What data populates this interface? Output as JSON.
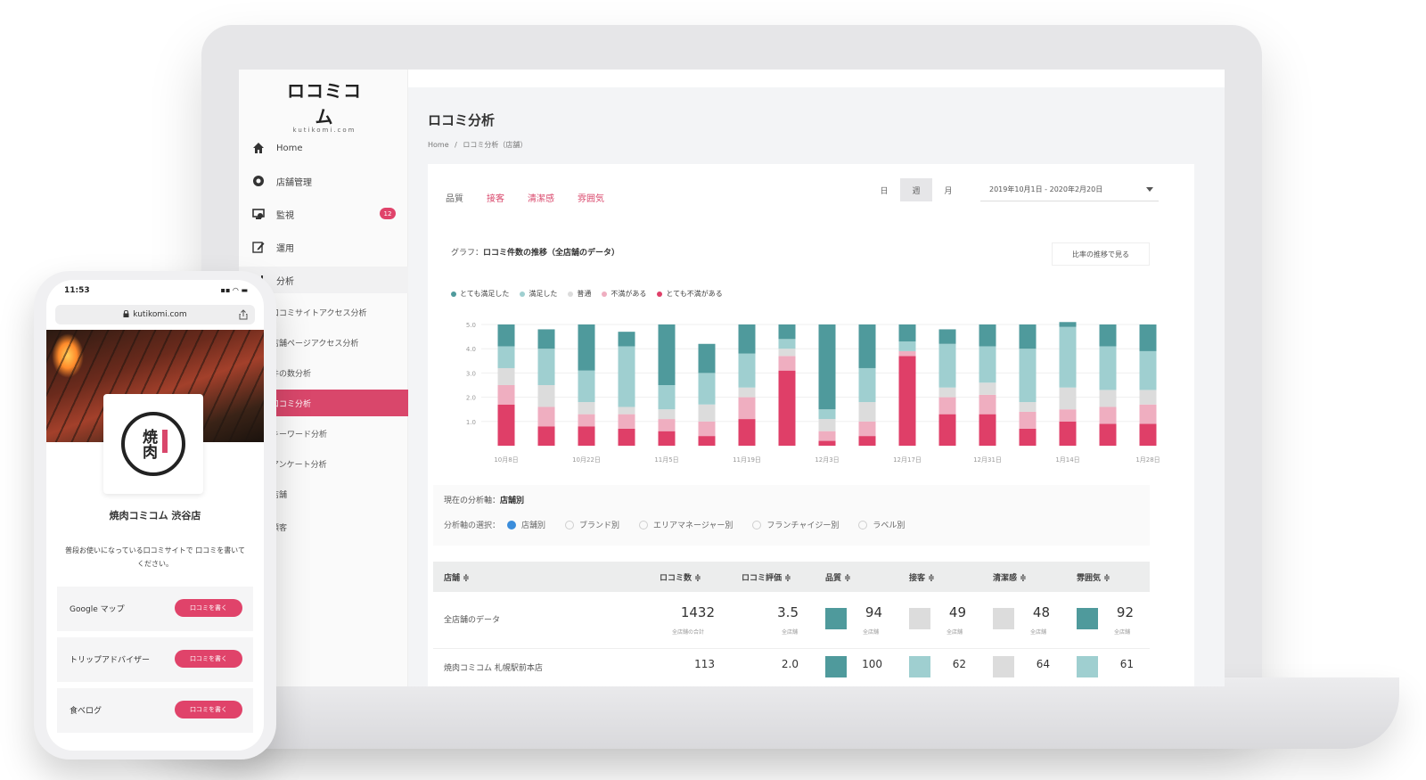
{
  "app": {
    "logo": "ロコミコム",
    "logo_sub": "kutikomi.com"
  },
  "sidebar": {
    "items": [
      {
        "label": "Home",
        "icon": "home-icon"
      },
      {
        "label": "店舗管理",
        "icon": "store-icon"
      },
      {
        "label": "監視",
        "icon": "monitor-icon",
        "badge": "12"
      },
      {
        "label": "運用",
        "icon": "edit-icon"
      },
      {
        "label": "分析",
        "icon": "chart-icon"
      }
    ],
    "sub_items": [
      {
        "label": "口コミサイトアクセス分析"
      },
      {
        "label": "店舗ページアクセス分析"
      },
      {
        "label": "件の数分析"
      },
      {
        "label": "口コミ分析",
        "active": true
      },
      {
        "label": "キーワード分析"
      },
      {
        "label": "アンケート分析"
      },
      {
        "label": "店舗"
      },
      {
        "label": "顧客"
      }
    ]
  },
  "page": {
    "title": "ロコミ分析",
    "breadcrumb": [
      "Home",
      "/",
      "ロコミ分析（店舗）"
    ]
  },
  "tabs": [
    "品質",
    "接客",
    "清潔感",
    "雰囲気"
  ],
  "period": {
    "options": [
      "日",
      "週",
      "月"
    ],
    "selected": "週",
    "date_range": "2019年10月1日 - 2020年2月20日"
  },
  "graph": {
    "label_prefix": "グラフ：",
    "label": "ロコミ件数の推移（全店舗のデータ）",
    "ratio_button": "比率の推移で見る"
  },
  "colors": {
    "very_satisfied": "#4f9a9c",
    "satisfied": "#9fcfd0",
    "normal": "#dcdcdc",
    "dissatisfied": "#efaec0",
    "very_dissatisfied": "#df3f68",
    "accent": "#d9476b"
  },
  "chart_data": {
    "type": "bar",
    "stacked": true,
    "ylim": [
      0,
      5
    ],
    "y_ticks": [
      "5.0",
      "4.0",
      "3.0",
      "2.0",
      "1.0"
    ],
    "x_tick_labels": [
      "10月8日",
      "10月22日",
      "11月5日",
      "11月19日",
      "12月3日",
      "12月17日",
      "12月31日",
      "1月14日",
      "1月28日"
    ],
    "legend": [
      "とても満足した",
      "満足した",
      "普通",
      "不満がある",
      "とても不満がある"
    ],
    "series": [
      {
        "name": "とても不満がある",
        "values": [
          1.7,
          0.8,
          0.8,
          0.7,
          0.6,
          0.4,
          1.1,
          3.1,
          0.2,
          0.4,
          3.7,
          1.3,
          1.3,
          0.7,
          1.0,
          0.9,
          0.9
        ]
      },
      {
        "name": "不満がある",
        "values": [
          0.8,
          0.8,
          0.5,
          0.6,
          0.5,
          0.6,
          0.9,
          0.6,
          0.4,
          0.6,
          0.2,
          0.7,
          0.8,
          0.7,
          0.5,
          0.7,
          0.8
        ]
      },
      {
        "name": "普通",
        "values": [
          0.7,
          0.9,
          0.5,
          0.3,
          0.4,
          0.7,
          0.4,
          0.3,
          0.5,
          0.8,
          0.0,
          0.4,
          0.5,
          0.4,
          0.9,
          0.7,
          0.6
        ]
      },
      {
        "name": "満足した",
        "values": [
          0.9,
          1.5,
          1.3,
          2.5,
          1.0,
          1.3,
          1.4,
          0.4,
          0.4,
          1.4,
          0.4,
          1.8,
          1.5,
          2.2,
          2.5,
          1.8,
          1.6
        ]
      },
      {
        "name": "とても満足した",
        "values": [
          0.9,
          0.8,
          1.9,
          0.6,
          2.5,
          1.2,
          1.2,
          0.6,
          3.5,
          1.8,
          0.7,
          0.6,
          0.9,
          1.0,
          0.2,
          0.9,
          1.1
        ]
      }
    ]
  },
  "analysis_axis": {
    "current_label": "現在の分析軸：",
    "current_value": "店舗別",
    "select_label": "分析軸の選択：",
    "options": [
      {
        "label": "店舗別",
        "checked": true
      },
      {
        "label": "ブランド別",
        "checked": false
      },
      {
        "label": "エリアマネージャー別",
        "checked": false
      },
      {
        "label": "フランチャイジー別",
        "checked": false
      },
      {
        "label": "ラベル別",
        "checked": false
      }
    ]
  },
  "table": {
    "headers": [
      "店舗 ≑",
      "ロコミ数 ≑",
      "ロコミ評価 ≑",
      "品質 ≑",
      "接客 ≑",
      "清潔感 ≑",
      "雰囲気 ≑"
    ],
    "rows": [
      {
        "name": "全店舗のデータ",
        "count": "1432",
        "count_sub": "全店舗の合計",
        "rating": "3.5",
        "rating_sub": "全店舗",
        "quality": "94",
        "quality_sub": "全店舗",
        "quality_color": "#4f9a9c",
        "service": "49",
        "service_sub": "全店舗",
        "service_color": "#dcdcdc",
        "clean": "48",
        "clean_sub": "全店舗",
        "clean_color": "#dcdcdc",
        "mood": "92",
        "mood_sub": "全店舗",
        "mood_color": "#4f9a9c"
      },
      {
        "name": "焼肉コミコム 札幌駅前本店",
        "count": "113",
        "rating": "2.0",
        "quality": "100",
        "quality_color": "#4f9a9c",
        "service": "62",
        "service_color": "#9fcfd0",
        "clean": "64",
        "clean_color": "#dcdcdc",
        "mood": "61",
        "mood_color": "#9fcfd0"
      }
    ]
  },
  "phone": {
    "time": "11:53",
    "status_right": "▪▪ ◠ ▬",
    "url": "kutikomi.com",
    "store_logo_text": "焼肉",
    "store_name": "焼肉コミコム 渋谷店",
    "message": "普段お使いになっている口コミサイトで 口コミを書いてください。",
    "sites": [
      {
        "name": "Google マップ",
        "button": "口コミを書く"
      },
      {
        "name": "トリップアドバイザー",
        "button": "口コミを書く"
      },
      {
        "name": "食べログ",
        "button": "口コミを書く"
      }
    ]
  }
}
